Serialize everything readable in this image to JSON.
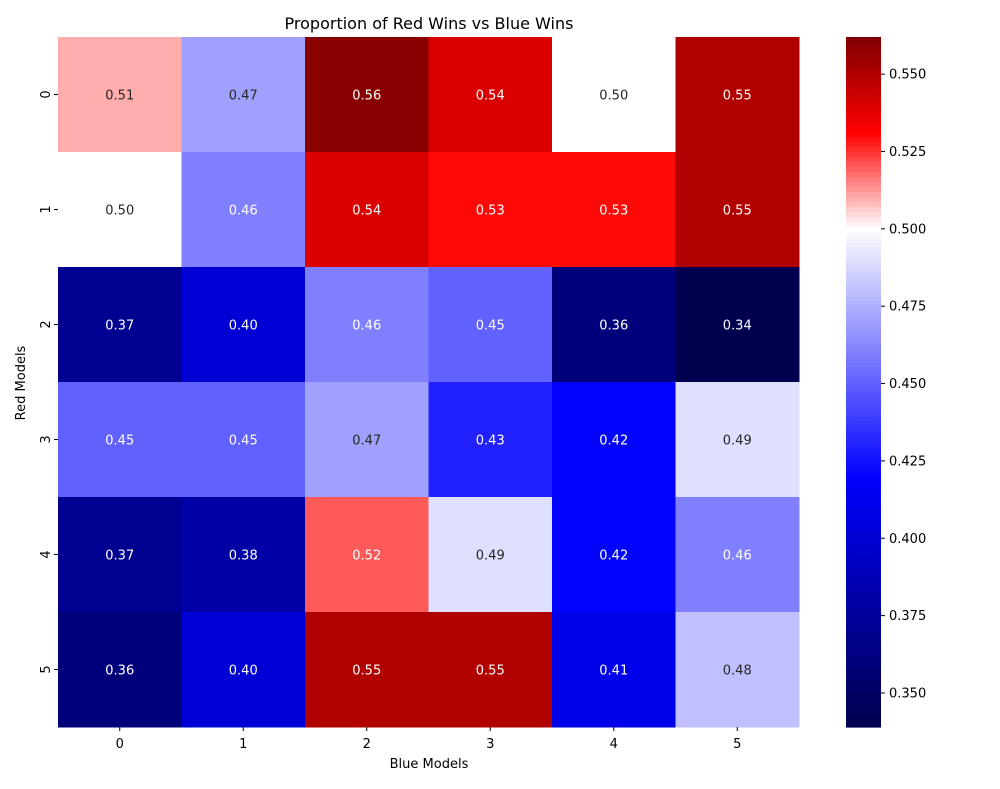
{
  "chart_data": {
    "type": "heatmap",
    "title": "Proportion of Red Wins vs Blue Wins",
    "xlabel": "Blue Models",
    "ylabel": "Red Models",
    "x_categories": [
      "0",
      "1",
      "2",
      "3",
      "4",
      "5"
    ],
    "y_categories": [
      "0",
      "1",
      "2",
      "3",
      "4",
      "5"
    ],
    "values": [
      [
        0.51,
        0.47,
        0.56,
        0.54,
        0.5,
        0.55
      ],
      [
        0.5,
        0.46,
        0.54,
        0.53,
        0.53,
        0.55
      ],
      [
        0.37,
        0.4,
        0.46,
        0.45,
        0.36,
        0.34
      ],
      [
        0.45,
        0.45,
        0.47,
        0.43,
        0.42,
        0.49
      ],
      [
        0.37,
        0.38,
        0.52,
        0.49,
        0.42,
        0.46
      ],
      [
        0.36,
        0.4,
        0.55,
        0.55,
        0.41,
        0.48
      ]
    ],
    "value_format": "0.00",
    "colorbar": {
      "range": [
        0.339,
        0.562
      ],
      "center": 0.5,
      "ticks": [
        "0.350",
        "0.375",
        "0.400",
        "0.425",
        "0.450",
        "0.475",
        "0.500",
        "0.525",
        "0.550"
      ],
      "colormap": "seismic"
    },
    "colors": {
      "low": "#00004c",
      "mid_low": "#0000ff",
      "center": "#ffffff",
      "mid_high": "#ff0000",
      "high": "#800000"
    }
  }
}
